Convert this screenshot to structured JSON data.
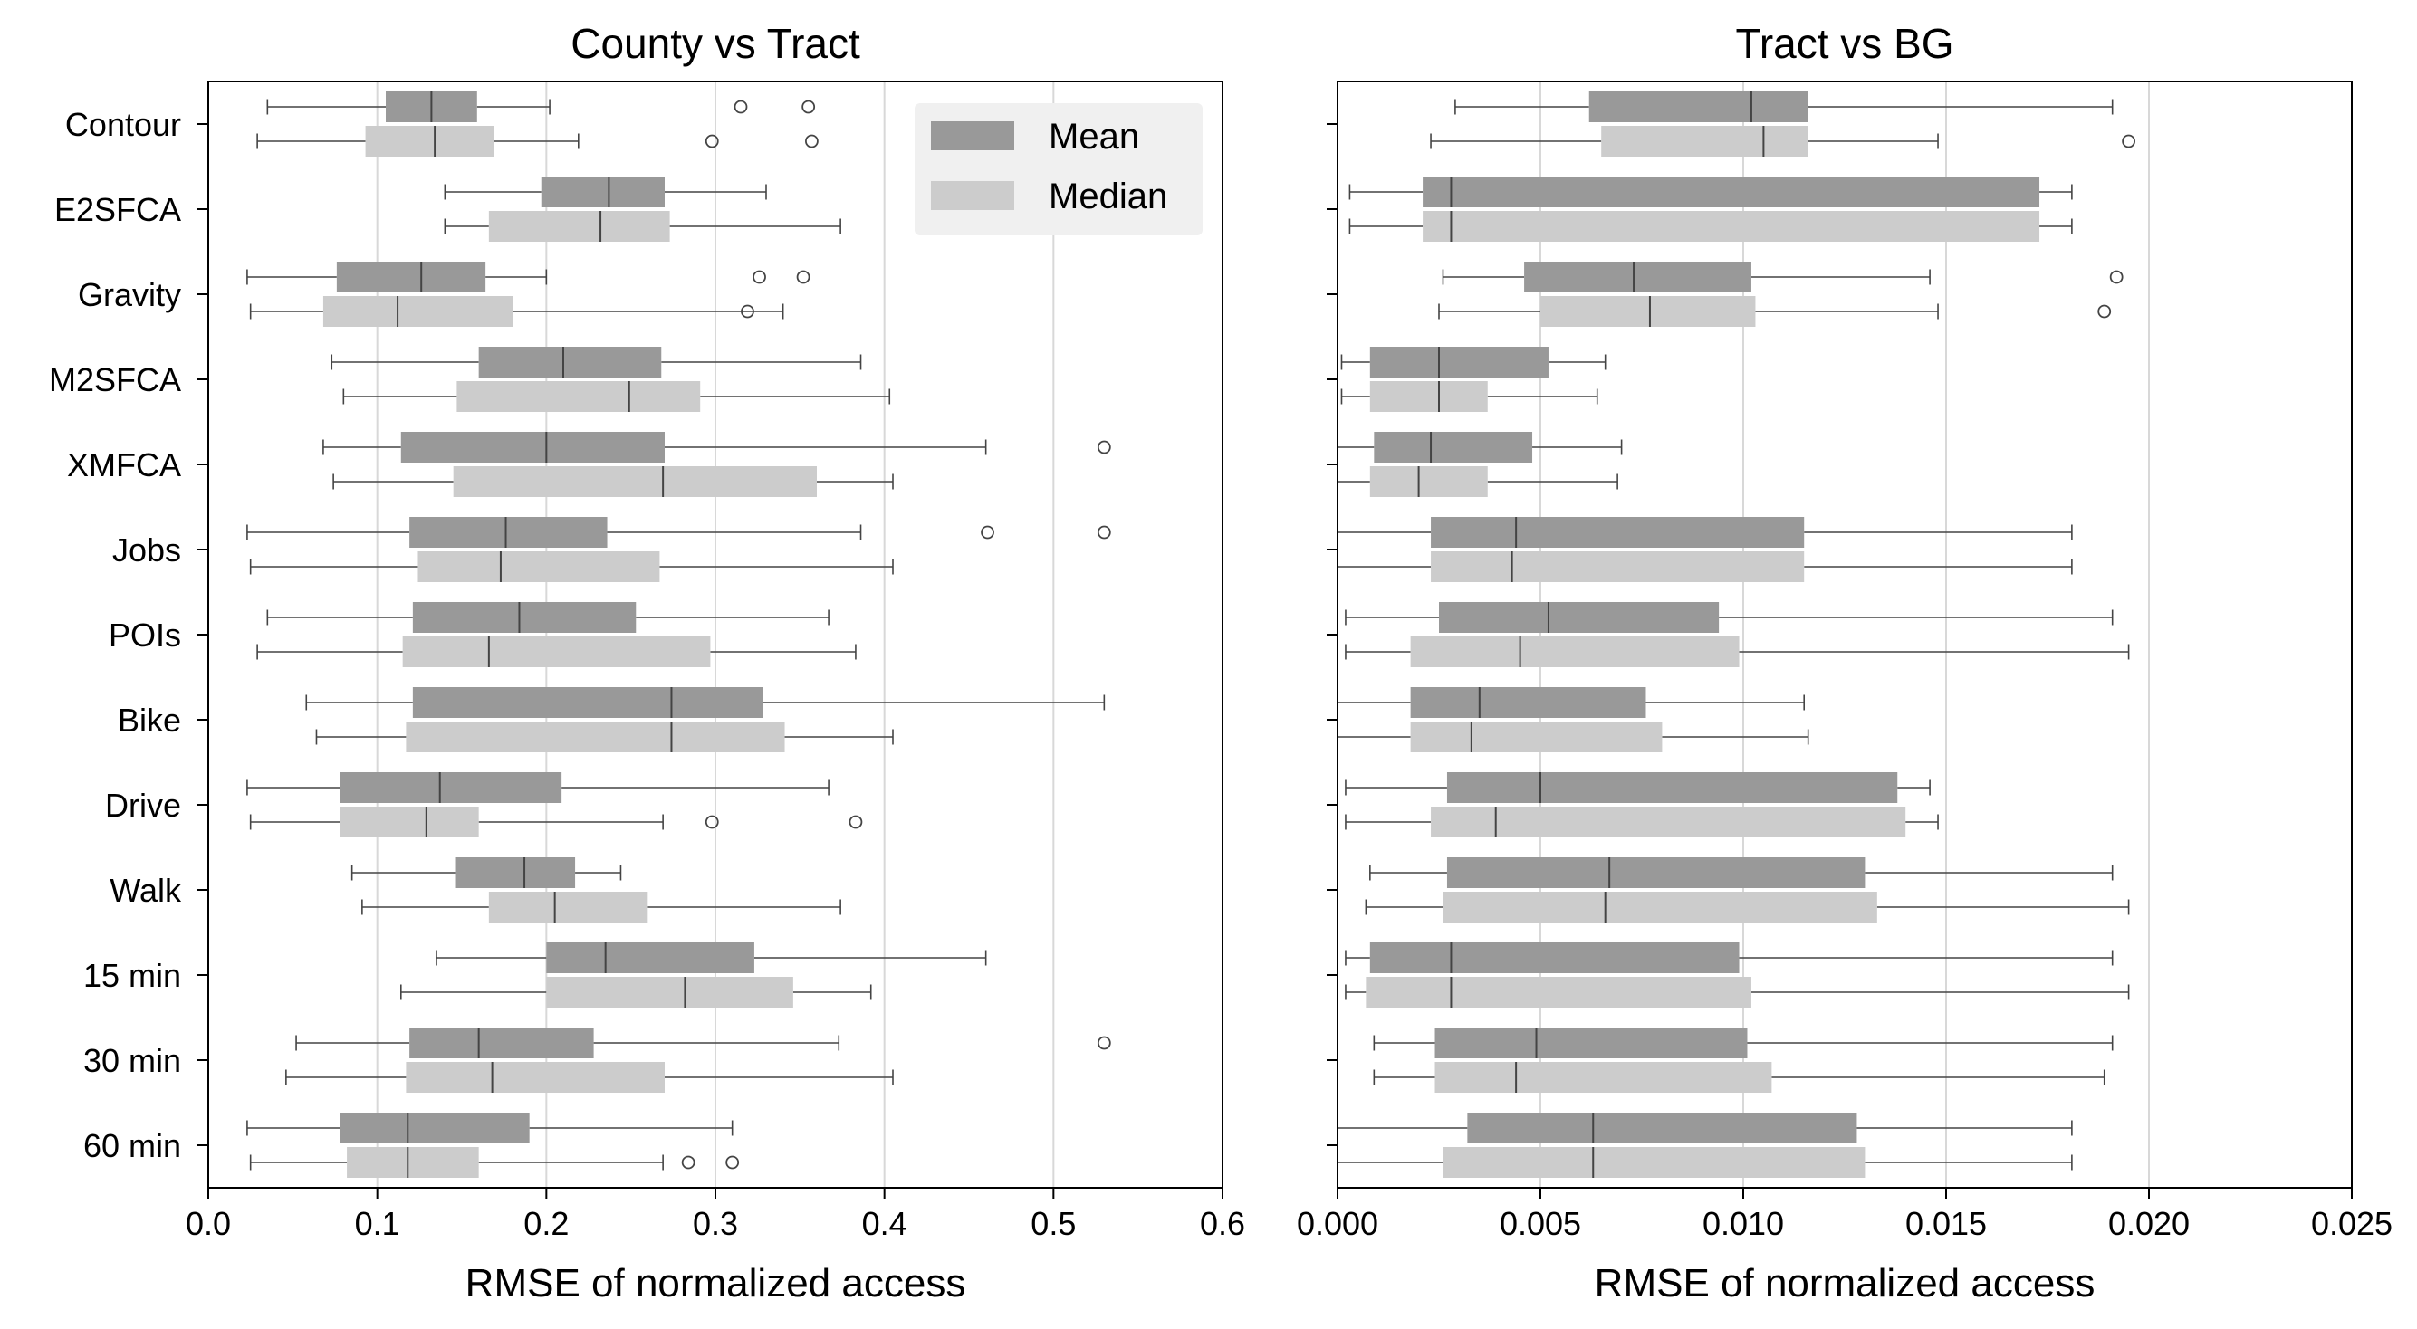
{
  "colors": {
    "mean": "#999999",
    "median": "#cccccc",
    "legend_bg": "#f0f0f0",
    "grid": "#d8d8d8"
  },
  "legend": {
    "entries": [
      "Mean",
      "Median"
    ],
    "placement": "upper-right of left panel"
  },
  "categories": [
    "Contour",
    "E2SFCA",
    "Gravity",
    "M2SFCA",
    "XMFCA",
    "Jobs",
    "POIs",
    "Bike",
    "Drive",
    "Walk",
    "15 min",
    "30 min",
    "60 min"
  ],
  "chart_data": [
    {
      "type": "box",
      "orientation": "horizontal",
      "title": "County vs Tract",
      "xlabel": "RMSE of normalized access",
      "xlim": [
        0.0,
        0.6
      ],
      "xticks": [
        0.0,
        0.1,
        0.2,
        0.3,
        0.4,
        0.5,
        0.6
      ],
      "xtick_labels": [
        "0.0",
        "0.1",
        "0.2",
        "0.3",
        "0.4",
        "0.5",
        "0.6"
      ],
      "grid": "vertical",
      "series": [
        {
          "name": "Mean",
          "boxes": [
            {
              "wl": 0.035,
              "q1": 0.105,
              "med": 0.132,
              "q3": 0.159,
              "wh": 0.202,
              "fliers": [
                0.315,
                0.355
              ]
            },
            {
              "wl": 0.14,
              "q1": 0.197,
              "med": 0.237,
              "q3": 0.27,
              "wh": 0.33,
              "fliers": []
            },
            {
              "wl": 0.023,
              "q1": 0.076,
              "med": 0.126,
              "q3": 0.164,
              "wh": 0.2,
              "fliers": [
                0.326,
                0.352
              ]
            },
            {
              "wl": 0.073,
              "q1": 0.16,
              "med": 0.21,
              "q3": 0.268,
              "wh": 0.386,
              "fliers": []
            },
            {
              "wl": 0.068,
              "q1": 0.114,
              "med": 0.2,
              "q3": 0.27,
              "wh": 0.46,
              "fliers": [
                0.53
              ]
            },
            {
              "wl": 0.023,
              "q1": 0.119,
              "med": 0.176,
              "q3": 0.236,
              "wh": 0.386,
              "fliers": [
                0.461,
                0.53
              ]
            },
            {
              "wl": 0.035,
              "q1": 0.121,
              "med": 0.184,
              "q3": 0.253,
              "wh": 0.367,
              "fliers": []
            },
            {
              "wl": 0.058,
              "q1": 0.121,
              "med": 0.274,
              "q3": 0.328,
              "wh": 0.53,
              "fliers": []
            },
            {
              "wl": 0.023,
              "q1": 0.078,
              "med": 0.137,
              "q3": 0.209,
              "wh": 0.367,
              "fliers": []
            },
            {
              "wl": 0.085,
              "q1": 0.146,
              "med": 0.187,
              "q3": 0.217,
              "wh": 0.244,
              "fliers": []
            },
            {
              "wl": 0.135,
              "q1": 0.2,
              "med": 0.235,
              "q3": 0.323,
              "wh": 0.46,
              "fliers": []
            },
            {
              "wl": 0.052,
              "q1": 0.119,
              "med": 0.16,
              "q3": 0.228,
              "wh": 0.373,
              "fliers": [
                0.53
              ]
            },
            {
              "wl": 0.023,
              "q1": 0.078,
              "med": 0.118,
              "q3": 0.19,
              "wh": 0.31,
              "fliers": []
            }
          ]
        },
        {
          "name": "Median",
          "boxes": [
            {
              "wl": 0.029,
              "q1": 0.093,
              "med": 0.134,
              "q3": 0.169,
              "wh": 0.219,
              "fliers": [
                0.298,
                0.357
              ]
            },
            {
              "wl": 0.14,
              "q1": 0.166,
              "med": 0.232,
              "q3": 0.273,
              "wh": 0.374,
              "fliers": []
            },
            {
              "wl": 0.025,
              "q1": 0.068,
              "med": 0.112,
              "q3": 0.18,
              "wh": 0.34,
              "fliers": [
                0.319
              ]
            },
            {
              "wl": 0.08,
              "q1": 0.147,
              "med": 0.249,
              "q3": 0.291,
              "wh": 0.403,
              "fliers": []
            },
            {
              "wl": 0.074,
              "q1": 0.145,
              "med": 0.269,
              "q3": 0.36,
              "wh": 0.405,
              "fliers": []
            },
            {
              "wl": 0.025,
              "q1": 0.124,
              "med": 0.173,
              "q3": 0.267,
              "wh": 0.405,
              "fliers": []
            },
            {
              "wl": 0.029,
              "q1": 0.115,
              "med": 0.166,
              "q3": 0.297,
              "wh": 0.383,
              "fliers": []
            },
            {
              "wl": 0.064,
              "q1": 0.117,
              "med": 0.274,
              "q3": 0.341,
              "wh": 0.405,
              "fliers": []
            },
            {
              "wl": 0.025,
              "q1": 0.078,
              "med": 0.129,
              "q3": 0.16,
              "wh": 0.269,
              "fliers": [
                0.298,
                0.383
              ]
            },
            {
              "wl": 0.091,
              "q1": 0.166,
              "med": 0.205,
              "q3": 0.26,
              "wh": 0.374,
              "fliers": []
            },
            {
              "wl": 0.114,
              "q1": 0.2,
              "med": 0.282,
              "q3": 0.346,
              "wh": 0.392,
              "fliers": []
            },
            {
              "wl": 0.046,
              "q1": 0.117,
              "med": 0.168,
              "q3": 0.27,
              "wh": 0.405,
              "fliers": []
            },
            {
              "wl": 0.025,
              "q1": 0.082,
              "med": 0.118,
              "q3": 0.16,
              "wh": 0.269,
              "fliers": [
                0.284,
                0.31
              ]
            }
          ]
        }
      ]
    },
    {
      "type": "box",
      "orientation": "horizontal",
      "title": "Tract vs BG",
      "xlabel": "RMSE of normalized access",
      "xlim": [
        0.0,
        0.025
      ],
      "xticks": [
        0.0,
        0.005,
        0.01,
        0.015,
        0.02,
        0.025
      ],
      "xtick_labels": [
        "0.000",
        "0.005",
        "0.010",
        "0.015",
        "0.020",
        "0.025"
      ],
      "grid": "vertical",
      "series": [
        {
          "name": "Mean",
          "boxes": [
            {
              "wl": 0.0029,
              "q1": 0.0062,
              "med": 0.0102,
              "q3": 0.0116,
              "wh": 0.0191,
              "fliers": []
            },
            {
              "wl": 0.0003,
              "q1": 0.0021,
              "med": 0.0028,
              "q3": 0.0173,
              "wh": 0.0181,
              "fliers": []
            },
            {
              "wl": 0.0026,
              "q1": 0.0046,
              "med": 0.0073,
              "q3": 0.0102,
              "wh": 0.0146,
              "fliers": [
                0.0192
              ]
            },
            {
              "wl": 0.0001,
              "q1": 0.0008,
              "med": 0.0025,
              "q3": 0.0052,
              "wh": 0.0066,
              "fliers": []
            },
            {
              "wl": 0.0,
              "q1": 0.0009,
              "med": 0.0023,
              "q3": 0.0048,
              "wh": 0.007,
              "fliers": []
            },
            {
              "wl": 0.0,
              "q1": 0.0023,
              "med": 0.0044,
              "q3": 0.0115,
              "wh": 0.0181,
              "fliers": []
            },
            {
              "wl": 0.0002,
              "q1": 0.0025,
              "med": 0.0052,
              "q3": 0.0094,
              "wh": 0.0191,
              "fliers": []
            },
            {
              "wl": 0.0,
              "q1": 0.0018,
              "med": 0.0035,
              "q3": 0.0076,
              "wh": 0.0115,
              "fliers": []
            },
            {
              "wl": 0.0002,
              "q1": 0.0027,
              "med": 0.005,
              "q3": 0.0138,
              "wh": 0.0146,
              "fliers": []
            },
            {
              "wl": 0.0008,
              "q1": 0.0027,
              "med": 0.0067,
              "q3": 0.013,
              "wh": 0.0191,
              "fliers": []
            },
            {
              "wl": 0.0002,
              "q1": 0.0008,
              "med": 0.0028,
              "q3": 0.0099,
              "wh": 0.0191,
              "fliers": []
            },
            {
              "wl": 0.0009,
              "q1": 0.0024,
              "med": 0.0049,
              "q3": 0.0101,
              "wh": 0.0191,
              "fliers": []
            },
            {
              "wl": 0.0,
              "q1": 0.0032,
              "med": 0.0063,
              "q3": 0.0128,
              "wh": 0.0181,
              "fliers": []
            }
          ]
        },
        {
          "name": "Median",
          "boxes": [
            {
              "wl": 0.0023,
              "q1": 0.0065,
              "med": 0.0105,
              "q3": 0.0116,
              "wh": 0.0148,
              "fliers": [
                0.0195
              ]
            },
            {
              "wl": 0.0003,
              "q1": 0.0021,
              "med": 0.0028,
              "q3": 0.0173,
              "wh": 0.0181,
              "fliers": []
            },
            {
              "wl": 0.0025,
              "q1": 0.005,
              "med": 0.0077,
              "q3": 0.0103,
              "wh": 0.0148,
              "fliers": [
                0.0189
              ]
            },
            {
              "wl": 0.0001,
              "q1": 0.0008,
              "med": 0.0025,
              "q3": 0.0037,
              "wh": 0.0064,
              "fliers": []
            },
            {
              "wl": 0.0,
              "q1": 0.0008,
              "med": 0.002,
              "q3": 0.0037,
              "wh": 0.0069,
              "fliers": []
            },
            {
              "wl": 0.0,
              "q1": 0.0023,
              "med": 0.0043,
              "q3": 0.0115,
              "wh": 0.0181,
              "fliers": []
            },
            {
              "wl": 0.0002,
              "q1": 0.0018,
              "med": 0.0045,
              "q3": 0.0099,
              "wh": 0.0195,
              "fliers": []
            },
            {
              "wl": 0.0,
              "q1": 0.0018,
              "med": 0.0033,
              "q3": 0.008,
              "wh": 0.0116,
              "fliers": []
            },
            {
              "wl": 0.0002,
              "q1": 0.0023,
              "med": 0.0039,
              "q3": 0.014,
              "wh": 0.0148,
              "fliers": []
            },
            {
              "wl": 0.0007,
              "q1": 0.0026,
              "med": 0.0066,
              "q3": 0.0133,
              "wh": 0.0195,
              "fliers": []
            },
            {
              "wl": 0.0002,
              "q1": 0.0007,
              "med": 0.0028,
              "q3": 0.0102,
              "wh": 0.0195,
              "fliers": []
            },
            {
              "wl": 0.0009,
              "q1": 0.0024,
              "med": 0.0044,
              "q3": 0.0107,
              "wh": 0.0189,
              "fliers": []
            },
            {
              "wl": 0.0,
              "q1": 0.0026,
              "med": 0.0063,
              "q3": 0.013,
              "wh": 0.0181,
              "fliers": []
            }
          ]
        }
      ]
    }
  ]
}
